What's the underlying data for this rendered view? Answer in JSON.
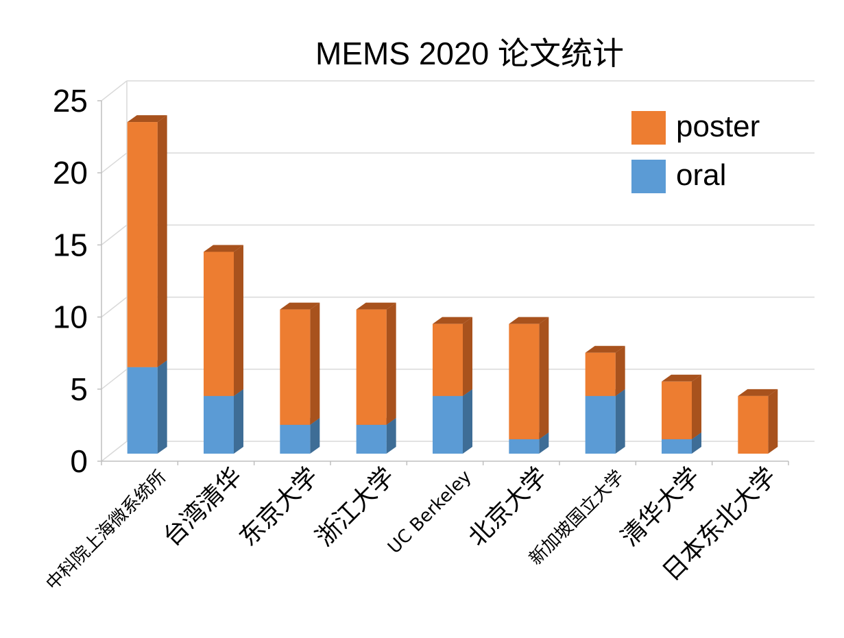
{
  "chart_data": {
    "type": "bar",
    "stacked": true,
    "title": "MEMS 2020 论文统计",
    "categories": [
      "中科院上海微系统所",
      "台湾清华",
      "东京大学",
      "浙江大学",
      "UC Berkeley",
      "北京大学",
      "新加坡国立大学",
      "清华大学",
      "日本东北大学"
    ],
    "series": [
      {
        "name": "oral",
        "values": [
          6,
          4,
          2,
          2,
          4,
          1,
          4,
          1,
          0
        ],
        "color": "#5b9bd5",
        "side_color": "#3e6d96"
      },
      {
        "name": "poster",
        "values": [
          17,
          10,
          8,
          8,
          5,
          8,
          3,
          4,
          4
        ],
        "color": "#ed7d31",
        "side_color": "#a8521d"
      }
    ],
    "legend_order": [
      "poster",
      "oral"
    ],
    "xlabel": "",
    "ylabel": "",
    "ylim": [
      0,
      25
    ],
    "yticks": [
      0,
      5,
      10,
      15,
      20,
      25
    ],
    "grid": true,
    "legend_position": "top-right",
    "three_d": true
  }
}
